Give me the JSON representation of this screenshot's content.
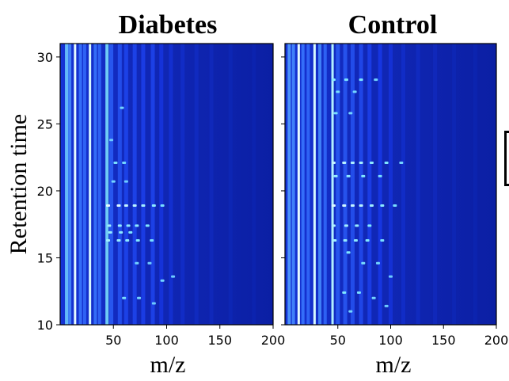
{
  "chart_data": [
    {
      "type": "heatmap",
      "title": "Diabetes",
      "xlabel": "m/z",
      "ylabel": "Retention time",
      "xlim": [
        0,
        200
      ],
      "ylim": [
        10,
        31
      ],
      "xticks": [
        50,
        100,
        150,
        200
      ],
      "yticks": [
        10,
        15,
        20,
        25,
        30
      ],
      "colormap": [
        "#0a1f9e",
        "#1838e8",
        "#3a78ff",
        "#7fe7ff",
        "#ffffff"
      ],
      "mz_lines": [
        {
          "mz": 6,
          "intensity": 0.7
        },
        {
          "mz": 9,
          "intensity": 0.55
        },
        {
          "mz": 14,
          "intensity": 0.95
        },
        {
          "mz": 19,
          "intensity": 0.5
        },
        {
          "mz": 23,
          "intensity": 0.45
        },
        {
          "mz": 28,
          "intensity": 0.92
        },
        {
          "mz": 33,
          "intensity": 0.5
        },
        {
          "mz": 37,
          "intensity": 0.45
        },
        {
          "mz": 44,
          "intensity": 0.75
        },
        {
          "mz": 48,
          "intensity": 0.4
        },
        {
          "mz": 56,
          "intensity": 0.35
        },
        {
          "mz": 62,
          "intensity": 0.3
        },
        {
          "mz": 70,
          "intensity": 0.3
        },
        {
          "mz": 78,
          "intensity": 0.28
        },
        {
          "mz": 87,
          "intensity": 0.3
        },
        {
          "mz": 95,
          "intensity": 0.22
        },
        {
          "mz": 104,
          "intensity": 0.18
        },
        {
          "mz": 115,
          "intensity": 0.15
        },
        {
          "mz": 128,
          "intensity": 0.12
        },
        {
          "mz": 142,
          "intensity": 0.1
        },
        {
          "mz": 160,
          "intensity": 0.08
        },
        {
          "mz": 182,
          "intensity": 0.06
        }
      ],
      "spots": [
        {
          "mz": 45,
          "rt": 18.9,
          "intensity": 0.9
        },
        {
          "mz": 55,
          "rt": 18.9,
          "intensity": 0.85
        },
        {
          "mz": 62,
          "rt": 18.9,
          "intensity": 0.75
        },
        {
          "mz": 70,
          "rt": 18.9,
          "intensity": 0.7
        },
        {
          "mz": 78,
          "rt": 18.9,
          "intensity": 0.6
        },
        {
          "mz": 88,
          "rt": 18.9,
          "intensity": 0.5
        },
        {
          "mz": 96,
          "rt": 18.9,
          "intensity": 0.4
        },
        {
          "mz": 46,
          "rt": 17.4,
          "intensity": 0.6
        },
        {
          "mz": 56,
          "rt": 17.4,
          "intensity": 0.55
        },
        {
          "mz": 64,
          "rt": 17.4,
          "intensity": 0.5
        },
        {
          "mz": 72,
          "rt": 17.4,
          "intensity": 0.5
        },
        {
          "mz": 82,
          "rt": 17.4,
          "intensity": 0.45
        },
        {
          "mz": 47,
          "rt": 16.9,
          "intensity": 0.55
        },
        {
          "mz": 57,
          "rt": 16.9,
          "intensity": 0.5
        },
        {
          "mz": 66,
          "rt": 16.9,
          "intensity": 0.45
        },
        {
          "mz": 45,
          "rt": 16.3,
          "intensity": 0.6
        },
        {
          "mz": 55,
          "rt": 16.3,
          "intensity": 0.55
        },
        {
          "mz": 63,
          "rt": 16.3,
          "intensity": 0.5
        },
        {
          "mz": 73,
          "rt": 16.3,
          "intensity": 0.45
        },
        {
          "mz": 86,
          "rt": 16.3,
          "intensity": 0.4
        },
        {
          "mz": 52,
          "rt": 22.1,
          "intensity": 0.4
        },
        {
          "mz": 60,
          "rt": 22.1,
          "intensity": 0.35
        },
        {
          "mz": 50,
          "rt": 20.7,
          "intensity": 0.35
        },
        {
          "mz": 62,
          "rt": 20.7,
          "intensity": 0.3
        },
        {
          "mz": 58,
          "rt": 26.2,
          "intensity": 0.35
        },
        {
          "mz": 48,
          "rt": 23.8,
          "intensity": 0.3
        },
        {
          "mz": 72,
          "rt": 14.6,
          "intensity": 0.35
        },
        {
          "mz": 84,
          "rt": 14.6,
          "intensity": 0.3
        },
        {
          "mz": 96,
          "rt": 13.3,
          "intensity": 0.35
        },
        {
          "mz": 106,
          "rt": 13.6,
          "intensity": 0.3
        },
        {
          "mz": 60,
          "rt": 12.0,
          "intensity": 0.4
        },
        {
          "mz": 74,
          "rt": 12.0,
          "intensity": 0.35
        },
        {
          "mz": 88,
          "rt": 11.6,
          "intensity": 0.3
        }
      ]
    },
    {
      "type": "heatmap",
      "title": "Control",
      "xlabel": "m/z",
      "ylabel": "",
      "xlim": [
        0,
        200
      ],
      "ylim": [
        10,
        31
      ],
      "xticks": [
        50,
        100,
        150,
        200
      ],
      "yticks": [
        10,
        15,
        20,
        25,
        30
      ],
      "colormap": [
        "#0a1f9e",
        "#1838e8",
        "#3a78ff",
        "#7fe7ff",
        "#ffffff"
      ],
      "mz_lines": [
        {
          "mz": 4,
          "intensity": 0.6
        },
        {
          "mz": 8,
          "intensity": 0.55
        },
        {
          "mz": 13,
          "intensity": 0.95
        },
        {
          "mz": 17,
          "intensity": 0.5
        },
        {
          "mz": 22,
          "intensity": 0.45
        },
        {
          "mz": 28,
          "intensity": 0.92
        },
        {
          "mz": 33,
          "intensity": 0.55
        },
        {
          "mz": 38,
          "intensity": 0.45
        },
        {
          "mz": 45,
          "intensity": 0.85
        },
        {
          "mz": 50,
          "intensity": 0.4
        },
        {
          "mz": 57,
          "intensity": 0.38
        },
        {
          "mz": 64,
          "intensity": 0.35
        },
        {
          "mz": 72,
          "intensity": 0.32
        },
        {
          "mz": 80,
          "intensity": 0.28
        },
        {
          "mz": 90,
          "intensity": 0.25
        },
        {
          "mz": 100,
          "intensity": 0.2
        },
        {
          "mz": 112,
          "intensity": 0.15
        },
        {
          "mz": 126,
          "intensity": 0.12
        },
        {
          "mz": 142,
          "intensity": 0.1
        },
        {
          "mz": 160,
          "intensity": 0.08
        },
        {
          "mz": 180,
          "intensity": 0.06
        }
      ],
      "spots": [
        {
          "mz": 46,
          "rt": 28.3,
          "intensity": 0.5
        },
        {
          "mz": 58,
          "rt": 28.3,
          "intensity": 0.45
        },
        {
          "mz": 72,
          "rt": 28.3,
          "intensity": 0.45
        },
        {
          "mz": 86,
          "rt": 28.3,
          "intensity": 0.35
        },
        {
          "mz": 50,
          "rt": 27.4,
          "intensity": 0.4
        },
        {
          "mz": 66,
          "rt": 27.4,
          "intensity": 0.35
        },
        {
          "mz": 48,
          "rt": 25.8,
          "intensity": 0.4
        },
        {
          "mz": 62,
          "rt": 25.8,
          "intensity": 0.35
        },
        {
          "mz": 46,
          "rt": 22.1,
          "intensity": 0.75
        },
        {
          "mz": 56,
          "rt": 22.1,
          "intensity": 0.7
        },
        {
          "mz": 64,
          "rt": 22.1,
          "intensity": 0.65
        },
        {
          "mz": 72,
          "rt": 22.1,
          "intensity": 0.6
        },
        {
          "mz": 82,
          "rt": 22.1,
          "intensity": 0.5
        },
        {
          "mz": 96,
          "rt": 22.1,
          "intensity": 0.45
        },
        {
          "mz": 110,
          "rt": 22.1,
          "intensity": 0.35
        },
        {
          "mz": 48,
          "rt": 21.1,
          "intensity": 0.55
        },
        {
          "mz": 60,
          "rt": 21.1,
          "intensity": 0.5
        },
        {
          "mz": 74,
          "rt": 21.1,
          "intensity": 0.45
        },
        {
          "mz": 90,
          "rt": 21.1,
          "intensity": 0.4
        },
        {
          "mz": 46,
          "rt": 18.9,
          "intensity": 0.85
        },
        {
          "mz": 56,
          "rt": 18.9,
          "intensity": 0.8
        },
        {
          "mz": 64,
          "rt": 18.9,
          "intensity": 0.75
        },
        {
          "mz": 72,
          "rt": 18.9,
          "intensity": 0.7
        },
        {
          "mz": 82,
          "rt": 18.9,
          "intensity": 0.6
        },
        {
          "mz": 92,
          "rt": 18.9,
          "intensity": 0.5
        },
        {
          "mz": 104,
          "rt": 18.9,
          "intensity": 0.4
        },
        {
          "mz": 46,
          "rt": 17.4,
          "intensity": 0.65
        },
        {
          "mz": 58,
          "rt": 17.4,
          "intensity": 0.6
        },
        {
          "mz": 68,
          "rt": 17.4,
          "intensity": 0.55
        },
        {
          "mz": 80,
          "rt": 17.4,
          "intensity": 0.45
        },
        {
          "mz": 47,
          "rt": 16.3,
          "intensity": 0.6
        },
        {
          "mz": 57,
          "rt": 16.3,
          "intensity": 0.55
        },
        {
          "mz": 67,
          "rt": 16.3,
          "intensity": 0.5
        },
        {
          "mz": 78,
          "rt": 16.3,
          "intensity": 0.45
        },
        {
          "mz": 92,
          "rt": 16.3,
          "intensity": 0.4
        },
        {
          "mz": 60,
          "rt": 15.4,
          "intensity": 0.45
        },
        {
          "mz": 74,
          "rt": 14.6,
          "intensity": 0.4
        },
        {
          "mz": 88,
          "rt": 14.6,
          "intensity": 0.35
        },
        {
          "mz": 100,
          "rt": 13.6,
          "intensity": 0.3
        },
        {
          "mz": 56,
          "rt": 12.4,
          "intensity": 0.45
        },
        {
          "mz": 70,
          "rt": 12.4,
          "intensity": 0.4
        },
        {
          "mz": 84,
          "rt": 12.0,
          "intensity": 0.35
        },
        {
          "mz": 96,
          "rt": 11.4,
          "intensity": 0.3
        },
        {
          "mz": 62,
          "rt": 11.0,
          "intensity": 0.35
        }
      ]
    }
  ]
}
